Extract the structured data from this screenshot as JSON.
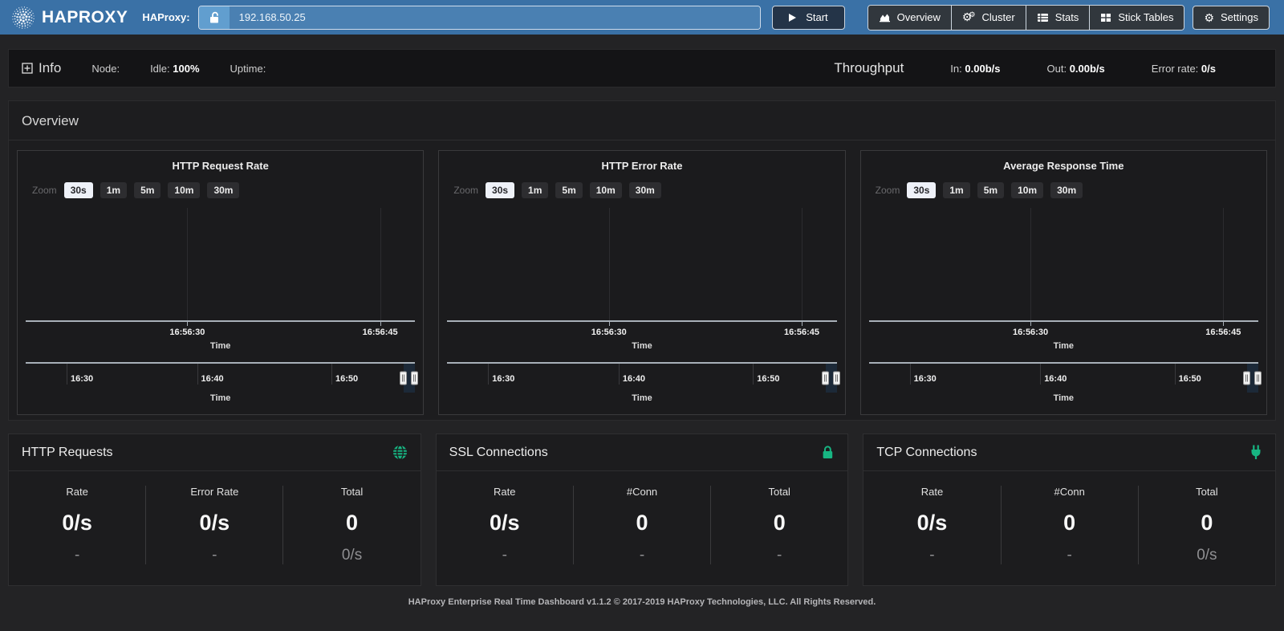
{
  "navbar": {
    "brand": "HAPROXY",
    "instance_label": "HAProxy:",
    "address_value": "192.168.50.25",
    "start_label": "Start",
    "nav_items": [
      {
        "label": "Overview",
        "icon": "area-chart-icon"
      },
      {
        "label": "Cluster",
        "icon": "cogs-icon"
      },
      {
        "label": "Stats",
        "icon": "table-list-icon"
      },
      {
        "label": "Stick Tables",
        "icon": "table-grid-icon"
      }
    ],
    "settings_label": "Settings"
  },
  "info_bar": {
    "title": "Info",
    "node_label": "Node:",
    "idle_label": "Idle:",
    "idle_value": "100%",
    "uptime_label": "Uptime:",
    "throughput_label": "Throughput",
    "in_label": "In:",
    "in_value": "0.00b/s",
    "out_label": "Out:",
    "out_value": "0.00b/s",
    "error_label": "Error rate:",
    "error_value": "0/s"
  },
  "overview": {
    "title": "Overview",
    "zoom_label": "Zoom",
    "zoom_options": [
      "30s",
      "1m",
      "5m",
      "10m",
      "30m"
    ],
    "zoom_selected": "30s",
    "axis_title": "Time",
    "main_axis_ticks": [
      "16:56:30",
      "16:56:45"
    ],
    "navigator_ticks": [
      "16:30",
      "16:40",
      "16:50"
    ]
  },
  "chart_data": [
    {
      "type": "line",
      "title": "HTTP Request Rate",
      "xlabel": "Time",
      "x_ticks": [
        "16:56:30",
        "16:56:45"
      ],
      "navigator_x_ticks": [
        "16:30",
        "16:40",
        "16:50"
      ],
      "series": [],
      "legend": false,
      "grid": true
    },
    {
      "type": "line",
      "title": "HTTP Error Rate",
      "xlabel": "Time",
      "x_ticks": [
        "16:56:30",
        "16:56:45"
      ],
      "navigator_x_ticks": [
        "16:30",
        "16:40",
        "16:50"
      ],
      "series": [],
      "legend": false,
      "grid": true
    },
    {
      "type": "line",
      "title": "Average Response Time",
      "xlabel": "Time",
      "x_ticks": [
        "16:56:30",
        "16:56:45"
      ],
      "navigator_x_ticks": [
        "16:30",
        "16:40",
        "16:50"
      ],
      "series": [],
      "legend": false,
      "grid": true
    }
  ],
  "cards": [
    {
      "title": "HTTP Requests",
      "icon": "globe-icon",
      "columns": [
        {
          "label": "Rate",
          "value": "0/s",
          "sub": "-"
        },
        {
          "label": "Error Rate",
          "value": "0/s",
          "sub": "-"
        },
        {
          "label": "Total",
          "value": "0",
          "sub": "0/s"
        }
      ]
    },
    {
      "title": "SSL Connections",
      "icon": "lock-icon",
      "columns": [
        {
          "label": "Rate",
          "value": "0/s",
          "sub": "-"
        },
        {
          "label": "#Conn",
          "value": "0",
          "sub": "-"
        },
        {
          "label": "Total",
          "value": "0",
          "sub": "-"
        }
      ]
    },
    {
      "title": "TCP Connections",
      "icon": "plug-icon",
      "columns": [
        {
          "label": "Rate",
          "value": "0/s",
          "sub": "-"
        },
        {
          "label": "#Conn",
          "value": "0",
          "sub": "-"
        },
        {
          "label": "Total",
          "value": "0",
          "sub": "0/s"
        }
      ]
    }
  ],
  "footer": {
    "text": "HAProxy Enterprise Real Time Dashboard v1.1.2 © 2017-2019 HAProxy Technologies, LLC. All Rights Reserved."
  },
  "colors": {
    "navbar_blue": "#3a71a6",
    "accent_green": "#17b582",
    "panel_dark": "#1b1b1d",
    "axis_line": "#a8b0b8"
  }
}
